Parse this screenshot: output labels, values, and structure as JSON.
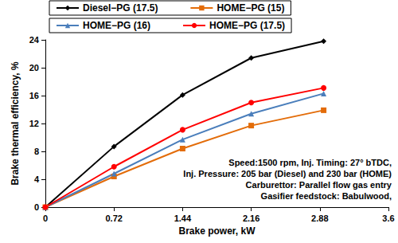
{
  "chart_data": {
    "type": "line",
    "xlabel": "Brake power, kW",
    "ylabel": "Brake thermal efficiency, %",
    "x": [
      0,
      0.72,
      1.44,
      2.16,
      2.92
    ],
    "series": [
      {
        "name": "Diesel−PG (17.5)",
        "color": "#000000",
        "marker": "diamond",
        "values": [
          0,
          8.7,
          16.1,
          21.4,
          23.8
        ]
      },
      {
        "name": "HOME−PG (15)",
        "color": "#e36c09",
        "marker": "square",
        "values": [
          0,
          4.4,
          8.4,
          11.7,
          13.9
        ]
      },
      {
        "name": "HOME−PG (16)",
        "color": "#4a7ebb",
        "marker": "triangle",
        "values": [
          0,
          4.8,
          9.7,
          13.4,
          16.3
        ]
      },
      {
        "name": "HOME−PG (17.5)",
        "color": "#ff0000",
        "marker": "circle",
        "values": [
          0,
          5.8,
          11.1,
          15.0,
          17.1
        ]
      }
    ],
    "xlim": [
      0,
      3.6
    ],
    "xticks": [
      0,
      0.72,
      1.44,
      2.16,
      2.88,
      3.6
    ],
    "ylim": [
      0,
      24
    ],
    "yticks": [
      0,
      4,
      8,
      12,
      16,
      20,
      24
    ],
    "grid": false,
    "legend": "top",
    "annotations": [
      "Speed:1500 rpm, Inj. Timing: 27° bTDC,",
      "Inj. Pressure: 205 bar (Diesel) and 230 bar (HOME)",
      "Carburettor: Parallel flow gas entry",
      "Gasifier feedstock: Babulwood,"
    ]
  }
}
